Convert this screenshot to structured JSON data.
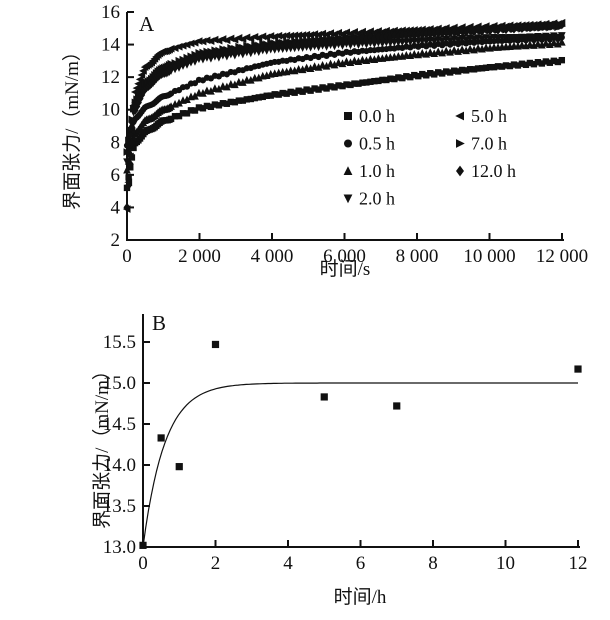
{
  "figure": {
    "background_color": "#ffffff",
    "ink_color": "#111111"
  },
  "chart_data": [
    {
      "panel_label": "A",
      "type": "scatter",
      "title": "",
      "xlabel": "时间/s",
      "ylabel": "界面张力/（mN/m）",
      "xlim": [
        0,
        12000
      ],
      "ylim": [
        2,
        16
      ],
      "grid": false,
      "x_ticks": [
        {
          "v": 0,
          "label": "0"
        },
        {
          "v": 2000,
          "label": "2 000"
        },
        {
          "v": 4000,
          "label": "4 000"
        },
        {
          "v": 6000,
          "label": "6 000"
        },
        {
          "v": 8000,
          "label": "8 000"
        },
        {
          "v": 10000,
          "label": "10 000"
        },
        {
          "v": 12000,
          "label": "12 000"
        }
      ],
      "y_ticks": [
        {
          "v": 2,
          "label": "2"
        },
        {
          "v": 4,
          "label": "4"
        },
        {
          "v": 6,
          "label": "6"
        },
        {
          "v": 8,
          "label": "8"
        },
        {
          "v": 10,
          "label": "10"
        },
        {
          "v": 12,
          "label": "12"
        },
        {
          "v": 14,
          "label": "14"
        },
        {
          "v": 16,
          "label": "16"
        }
      ],
      "legend": {
        "position": "inside-lower-right",
        "columns": [
          [
            {
              "marker": "square",
              "label": "0.0 h"
            },
            {
              "marker": "circle",
              "label": "0.5 h"
            },
            {
              "marker": "triangle-up",
              "label": "1.0 h"
            },
            {
              "marker": "triangle-down",
              "label": "2.0 h"
            }
          ],
          [
            {
              "marker": "triangle-left",
              "label": "5.0 h"
            },
            {
              "marker": "triangle-right",
              "label": "7.0 h"
            },
            {
              "marker": "diamond",
              "label": "12.0 h"
            }
          ]
        ]
      },
      "anchor_t": [
        0,
        200,
        500,
        1000,
        2000,
        4000,
        6000,
        8000,
        10000,
        12000
      ],
      "series": [
        {
          "name": "0.0 h",
          "marker": "square",
          "y": [
            5.2,
            7.9,
            8.6,
            9.3,
            10.1,
            10.9,
            11.5,
            12.1,
            12.6,
            13.0
          ]
        },
        {
          "name": "0.5 h",
          "marker": "circle",
          "y": [
            7.8,
            9.4,
            10.1,
            10.8,
            11.8,
            12.9,
            13.5,
            13.9,
            14.2,
            14.4
          ]
        },
        {
          "name": "1.0 h",
          "marker": "triangle-up",
          "y": [
            6.3,
            8.5,
            9.3,
            10.0,
            11.0,
            12.2,
            12.9,
            13.4,
            13.8,
            14.1
          ]
        },
        {
          "name": "2.0 h",
          "marker": "triangle-down",
          "y": [
            6.8,
            10.2,
            11.3,
            12.2,
            13.1,
            13.7,
            14.0,
            14.2,
            14.4,
            14.5
          ]
        },
        {
          "name": "5.0 h",
          "marker": "triangle-left",
          "y": [
            3.9,
            11.0,
            12.6,
            13.6,
            14.2,
            14.5,
            14.7,
            14.9,
            15.1,
            15.3
          ]
        },
        {
          "name": "7.0 h",
          "marker": "triangle-right",
          "y": [
            7.4,
            10.4,
            11.6,
            12.6,
            13.5,
            14.1,
            14.4,
            14.7,
            14.9,
            15.1
          ]
        },
        {
          "name": "12.0 h",
          "marker": "diamond",
          "y": [
            4.0,
            9.9,
            11.3,
            12.3,
            13.3,
            13.9,
            14.3,
            14.6,
            14.9,
            15.2
          ]
        }
      ]
    },
    {
      "panel_label": "B",
      "type": "scatter",
      "title": "",
      "xlabel": "时间/h",
      "ylabel": "界面张力/（mN/m）",
      "xlim": [
        0,
        12
      ],
      "ylim": [
        13.0,
        15.5
      ],
      "grid": false,
      "x_ticks": [
        {
          "v": 0,
          "label": "0"
        },
        {
          "v": 2,
          "label": "2"
        },
        {
          "v": 4,
          "label": "4"
        },
        {
          "v": 6,
          "label": "6"
        },
        {
          "v": 8,
          "label": "8"
        },
        {
          "v": 10,
          "label": "10"
        },
        {
          "v": 12,
          "label": "12"
        }
      ],
      "y_ticks": [
        {
          "v": 13.0,
          "label": "13.0"
        },
        {
          "v": 13.5,
          "label": "13.5"
        },
        {
          "v": 14.0,
          "label": "14.0"
        },
        {
          "v": 14.5,
          "label": "14.5"
        },
        {
          "v": 15.0,
          "label": "15.0"
        },
        {
          "v": 15.5,
          "label": "15.5"
        }
      ],
      "points": {
        "marker": "square",
        "x": [
          0,
          0.5,
          1,
          2,
          5,
          7,
          12
        ],
        "y": [
          13.02,
          14.33,
          13.98,
          15.47,
          14.83,
          14.72,
          15.17
        ]
      },
      "fit_curve": {
        "form": "y = y0 + a*(1 - exp(-x/tau))",
        "y0": 13.0,
        "a": 2.0,
        "tau": 0.6
      }
    }
  ]
}
